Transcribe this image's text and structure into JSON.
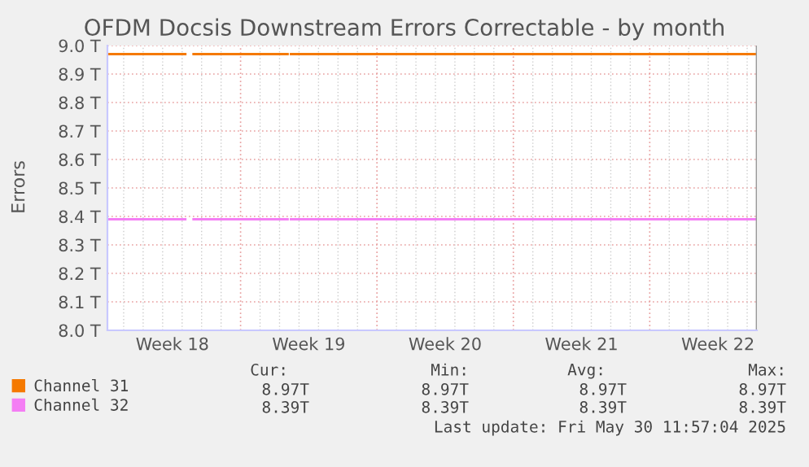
{
  "chart_data": {
    "type": "line",
    "title": "OFDM Docsis Downstream Errors Correctable - by month",
    "ylabel": "Errors",
    "x": [
      "2025-04-27T04:00",
      "2025-05-01T04:00",
      "2025-05-01T10:00",
      "2025-05-01T14:00",
      "2025-05-06T10:00",
      "2025-05-06T12:00",
      "2025-05-06T14:00",
      "2025-05-30T12:00"
    ],
    "series": [
      {
        "name": "Channel 31",
        "color": "#f57900",
        "values": [
          8.97,
          8.97,
          null,
          8.97,
          8.97,
          null,
          8.97,
          8.97
        ]
      },
      {
        "name": "Channel 32",
        "color": "#f47ef4",
        "values": [
          8.39,
          8.39,
          null,
          8.39,
          8.39,
          null,
          8.39,
          8.39
        ]
      }
    ],
    "xlim": [
      "2025-04-27T04:00",
      "2025-05-30T12:00"
    ],
    "xticks": [
      {
        "value": "2025-04-30T12:00",
        "label": "Week 18"
      },
      {
        "value": "2025-05-04",
        "label": null
      },
      {
        "value": "2025-05-07T12:00",
        "label": "Week 19"
      },
      {
        "value": "2025-05-11",
        "label": null
      },
      {
        "value": "2025-05-14T12:00",
        "label": "Week 20"
      },
      {
        "value": "2025-05-18",
        "label": null
      },
      {
        "value": "2025-05-21T12:00",
        "label": "Week 21"
      },
      {
        "value": "2025-05-25",
        "label": null
      },
      {
        "value": "2025-05-28T12:00",
        "label": "Week 22"
      }
    ],
    "ylim": [
      8.0,
      9.0
    ],
    "yticks": [
      {
        "value": 8.0,
        "label": "8.0 T"
      },
      {
        "value": 8.1,
        "label": "8.1 T"
      },
      {
        "value": 8.2,
        "label": "8.2 T"
      },
      {
        "value": 8.3,
        "label": "8.3 T"
      },
      {
        "value": 8.4,
        "label": "8.4 T"
      },
      {
        "value": 8.5,
        "label": "8.5 T"
      },
      {
        "value": 8.6,
        "label": "8.6 T"
      },
      {
        "value": 8.7,
        "label": "8.7 T"
      },
      {
        "value": 8.8,
        "label": "8.8 T"
      },
      {
        "value": 8.9,
        "label": "8.9 T"
      },
      {
        "value": 9.0,
        "label": "9.0 T"
      }
    ],
    "grid": true,
    "legend": "bottom",
    "marker": "none",
    "line_style": "solid",
    "annotations": [
      "Cur:",
      "Min:",
      "Avg:",
      "Max:",
      "8.97T",
      "8.97T",
      "8.97T",
      "8.97T",
      "8.39T",
      "8.39T",
      "8.39T",
      "8.39T",
      "Last update: Fri May 30 11:57:04 2025"
    ]
  }
}
